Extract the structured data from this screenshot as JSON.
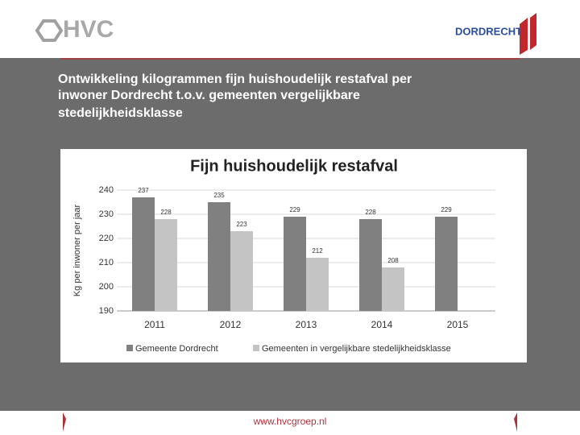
{
  "header": {
    "left_logo": "HVC",
    "right_logo": "DORDRECHT"
  },
  "slide_title": [
    "Ontwikkeling kilogrammen fijn huishoudelijk restafval per",
    "inwoner Dordrecht t.o.v. gemeenten vergelijkbare",
    "stedelijkheidsklasse"
  ],
  "footer": "www.hvcgroep.nl",
  "chart_data": {
    "type": "bar",
    "title": "Fijn huishoudelijk restafval",
    "y_label": "Kg per inwoner per jaar",
    "categories": [
      "2011",
      "2012",
      "2013",
      "2014",
      "2015"
    ],
    "series": [
      {
        "name": "Gemeente Dordrecht",
        "color": "#808080",
        "values": [
          237,
          235,
          229,
          228,
          229
        ]
      },
      {
        "name": "Gemeenten in vergelijkbare stedelijkheidsklasse",
        "color": "#c4c4c4",
        "values": [
          228,
          223,
          212,
          208,
          null
        ]
      }
    ],
    "ylim": [
      190,
      240
    ],
    "yticks": [
      190,
      200,
      210,
      220,
      230,
      240
    ],
    "grid": true,
    "legend": "bottom"
  }
}
